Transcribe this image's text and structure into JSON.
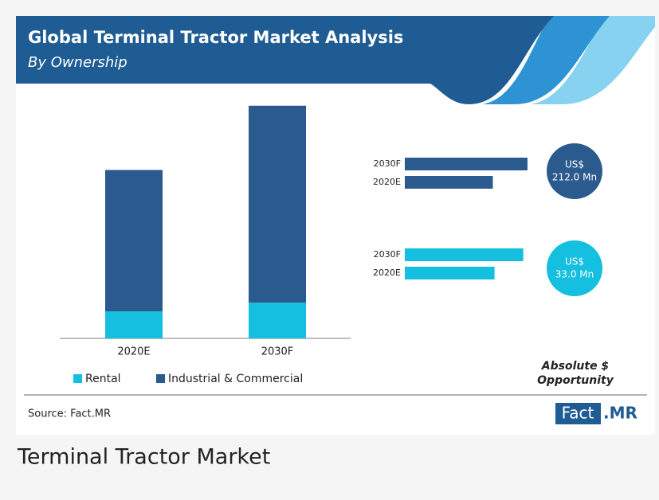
{
  "header": {
    "title": "Global Terminal Tractor Market Analysis",
    "subtitle": "By Ownership"
  },
  "chart_data": [
    {
      "type": "stacked_bar",
      "categories": [
        "2020E",
        "2030F"
      ],
      "series": [
        {
          "name": "Rental",
          "color": "#14bfdf",
          "values": [
            103,
            136
          ]
        },
        {
          "name": "Industrial & Commercial",
          "color": "#2b5b8e",
          "values": [
            539,
            751
          ]
        }
      ],
      "ylim": [
        0,
        950
      ]
    },
    {
      "type": "hbar",
      "categories": [
        "2030F",
        "2020E"
      ],
      "values": [
        751,
        539
      ],
      "color": "#2b5b8e",
      "xlim": [
        0,
        800
      ],
      "annotation": [
        "US$",
        "212.0 Mn"
      ]
    },
    {
      "type": "hbar",
      "categories": [
        "2030F",
        "2020E"
      ],
      "values": [
        136,
        103
      ],
      "color": "#14bfdf",
      "xlim": [
        0,
        150
      ],
      "annotation": [
        "US$",
        "33.0 Mn"
      ]
    }
  ],
  "opportunity_label": [
    "Absolute $",
    "Opportunity"
  ],
  "source": "Source: Fact.MR",
  "logo": [
    "Fact",
    ".MR"
  ],
  "caption": "Terminal Tractor Market"
}
